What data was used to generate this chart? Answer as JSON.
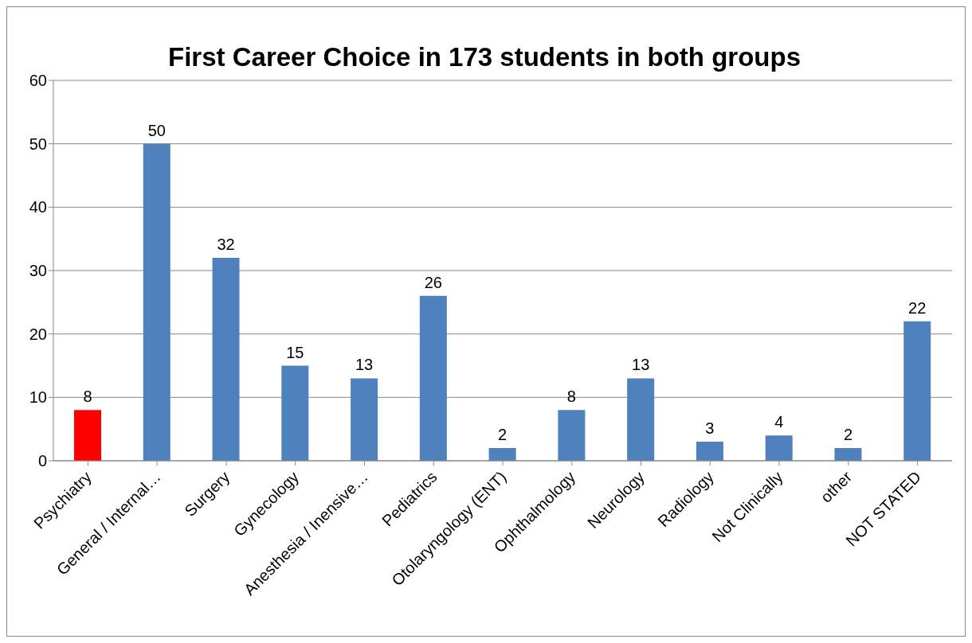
{
  "chart_data": {
    "type": "bar",
    "title": "First Career Choice in 173 students in both groups",
    "categories": [
      "Psychiatry",
      "General / Internal…",
      "Surgery",
      "Gynecology",
      "Anesthesia / Inensive…",
      "Pediatrics",
      "Otolaryngology (ENT)",
      "Ophthalmology",
      "Neurology",
      "Radiology",
      "Not Clinically",
      "other",
      "NOT STATED"
    ],
    "values": [
      8,
      50,
      32,
      15,
      13,
      26,
      2,
      8,
      13,
      3,
      4,
      2,
      22
    ],
    "colors": [
      "#ff0000",
      "#4f81bd",
      "#4f81bd",
      "#4f81bd",
      "#4f81bd",
      "#4f81bd",
      "#4f81bd",
      "#4f81bd",
      "#4f81bd",
      "#4f81bd",
      "#4f81bd",
      "#4f81bd",
      "#4f81bd"
    ],
    "ylim": [
      0,
      60
    ],
    "yticks": [
      0,
      10,
      20,
      30,
      40,
      50,
      60
    ],
    "grid": "y",
    "data_labels": true
  }
}
